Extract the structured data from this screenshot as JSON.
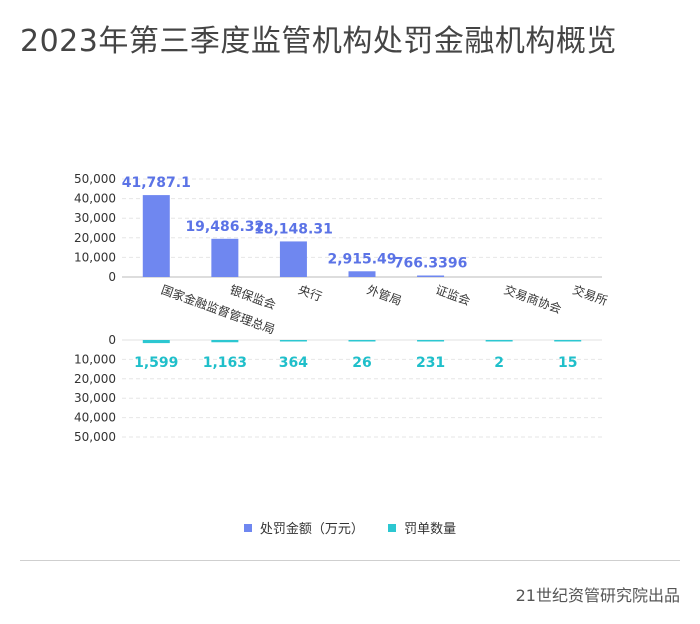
{
  "title": "2023年第三季度监管机构处罚金融机构概览",
  "source": "21世纪资管研究院出品",
  "colors": {
    "amount": "#6f87f0",
    "count": "#2cc7d1",
    "amount_label": "#5b73e6",
    "count_label": "#1fbfca"
  },
  "chart_data": {
    "type": "bar",
    "categories": [
      "国家金融监督管理总局",
      "银保监会",
      "央行",
      "外管局",
      "证监会",
      "交易商协会",
      "交易所"
    ],
    "series": [
      {
        "name": "处罚金额（万元）",
        "values": [
          41787.1,
          19486.32,
          18148.31,
          2915.49,
          766.3396,
          0,
          0
        ],
        "labels": [
          "41,787.1",
          "19,486.32",
          "18,148.31",
          "2,915.49",
          "766.3396",
          "",
          ""
        ]
      },
      {
        "name": "罚单数量",
        "values": [
          1599,
          1163,
          364,
          26,
          231,
          2,
          15
        ],
        "labels": [
          "1,599",
          "1,163",
          "364",
          "26",
          "231",
          "2",
          "15"
        ]
      }
    ],
    "top_axis": {
      "ylim": [
        0,
        50000
      ],
      "ticks": [
        "0",
        "10,000",
        "20,000",
        "30,000",
        "40,000",
        "50,000"
      ]
    },
    "bottom_axis": {
      "ylim": [
        0,
        50000
      ],
      "inverted": true,
      "ticks": [
        "0",
        "10,000",
        "20,000",
        "30,000",
        "40,000",
        "50,000"
      ]
    },
    "grid": true,
    "legend_position": "bottom"
  }
}
